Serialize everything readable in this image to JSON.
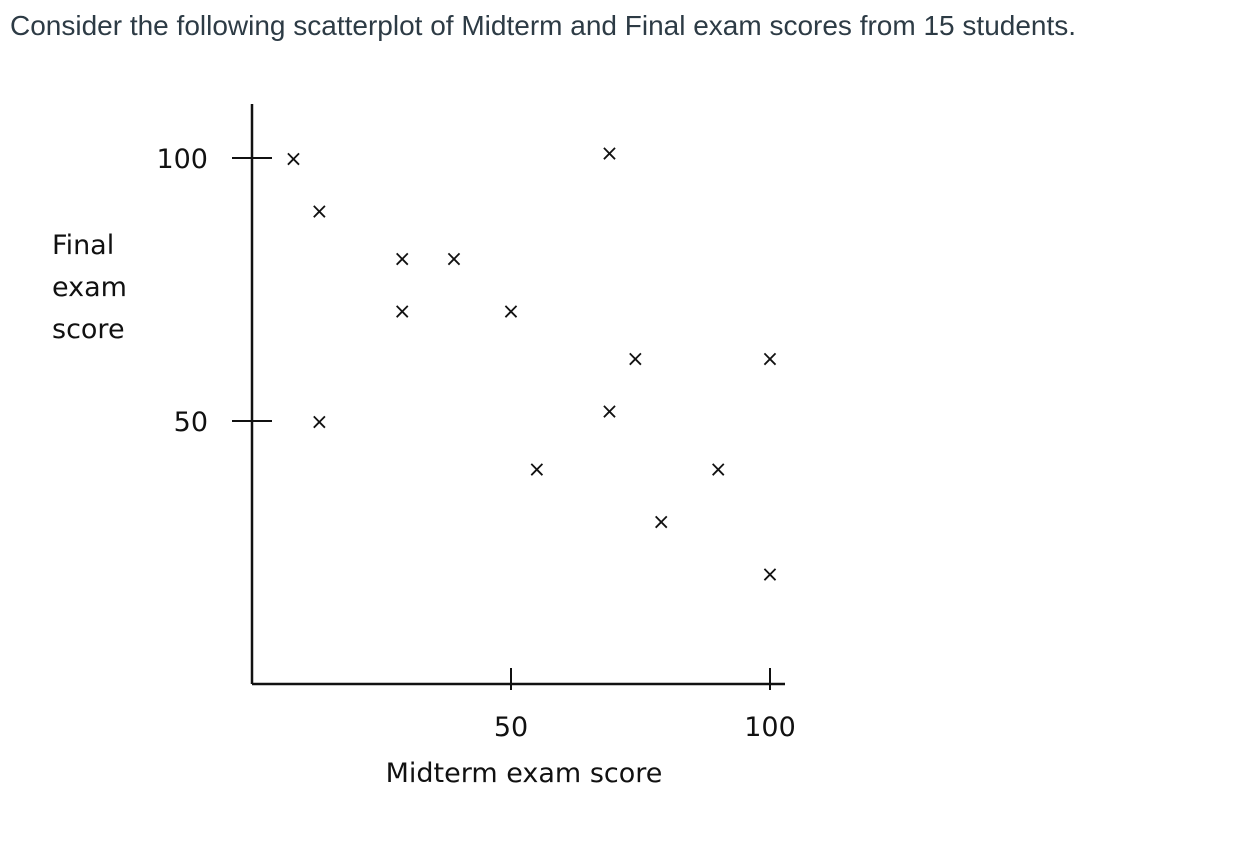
{
  "question": {
    "text": "Consider the following scatterplot of Midterm and Final exam scores from 15 students."
  },
  "chart_data": {
    "type": "scatter",
    "title": "",
    "xlabel": "Midterm exam score",
    "ylabel": [
      "Final",
      "exam",
      "score"
    ],
    "xticks": [
      50,
      100
    ],
    "yticks": [
      50,
      100
    ],
    "xlim": [
      0,
      102
    ],
    "ylim": [
      0,
      110
    ],
    "grid": false,
    "marker": "x",
    "points": [
      {
        "x": 8,
        "y": 100
      },
      {
        "x": 69,
        "y": 101
      },
      {
        "x": 13,
        "y": 90
      },
      {
        "x": 29,
        "y": 81
      },
      {
        "x": 39,
        "y": 81
      },
      {
        "x": 29,
        "y": 71
      },
      {
        "x": 50,
        "y": 71
      },
      {
        "x": 74,
        "y": 62
      },
      {
        "x": 100,
        "y": 62
      },
      {
        "x": 13,
        "y": 50
      },
      {
        "x": 69,
        "y": 52
      },
      {
        "x": 55,
        "y": 41
      },
      {
        "x": 90,
        "y": 41
      },
      {
        "x": 79,
        "y": 31
      },
      {
        "x": 100,
        "y": 21
      }
    ]
  }
}
